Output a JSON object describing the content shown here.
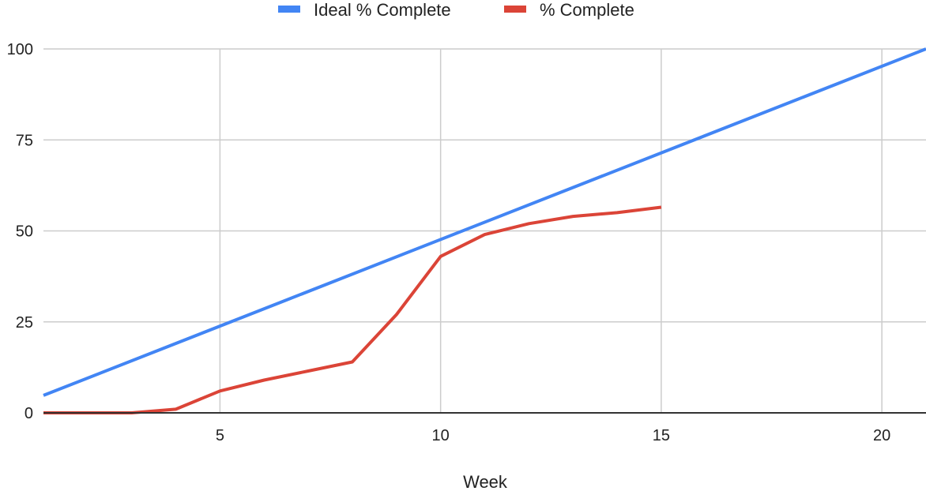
{
  "chart_data": {
    "type": "line",
    "title": "",
    "xlabel": "Week",
    "ylabel": "",
    "xlim": [
      1,
      21
    ],
    "ylim": [
      0,
      100
    ],
    "x_ticks": [
      5,
      10,
      15,
      20
    ],
    "y_ticks": [
      0,
      25,
      50,
      75,
      100
    ],
    "grid": true,
    "legend_position": "top",
    "series": [
      {
        "name": "Ideal % Complete",
        "color": "#4285f4",
        "x": [
          1,
          21
        ],
        "y": [
          4.8,
          100
        ]
      },
      {
        "name": "% Complete",
        "color": "#db4437",
        "x": [
          1,
          2,
          3,
          4,
          5,
          6,
          7,
          8,
          9,
          10,
          11,
          12,
          13,
          14,
          15
        ],
        "y": [
          0,
          0,
          0,
          1,
          6,
          9,
          11.5,
          14,
          27,
          43,
          49,
          52,
          54,
          55,
          56.5
        ]
      }
    ]
  }
}
